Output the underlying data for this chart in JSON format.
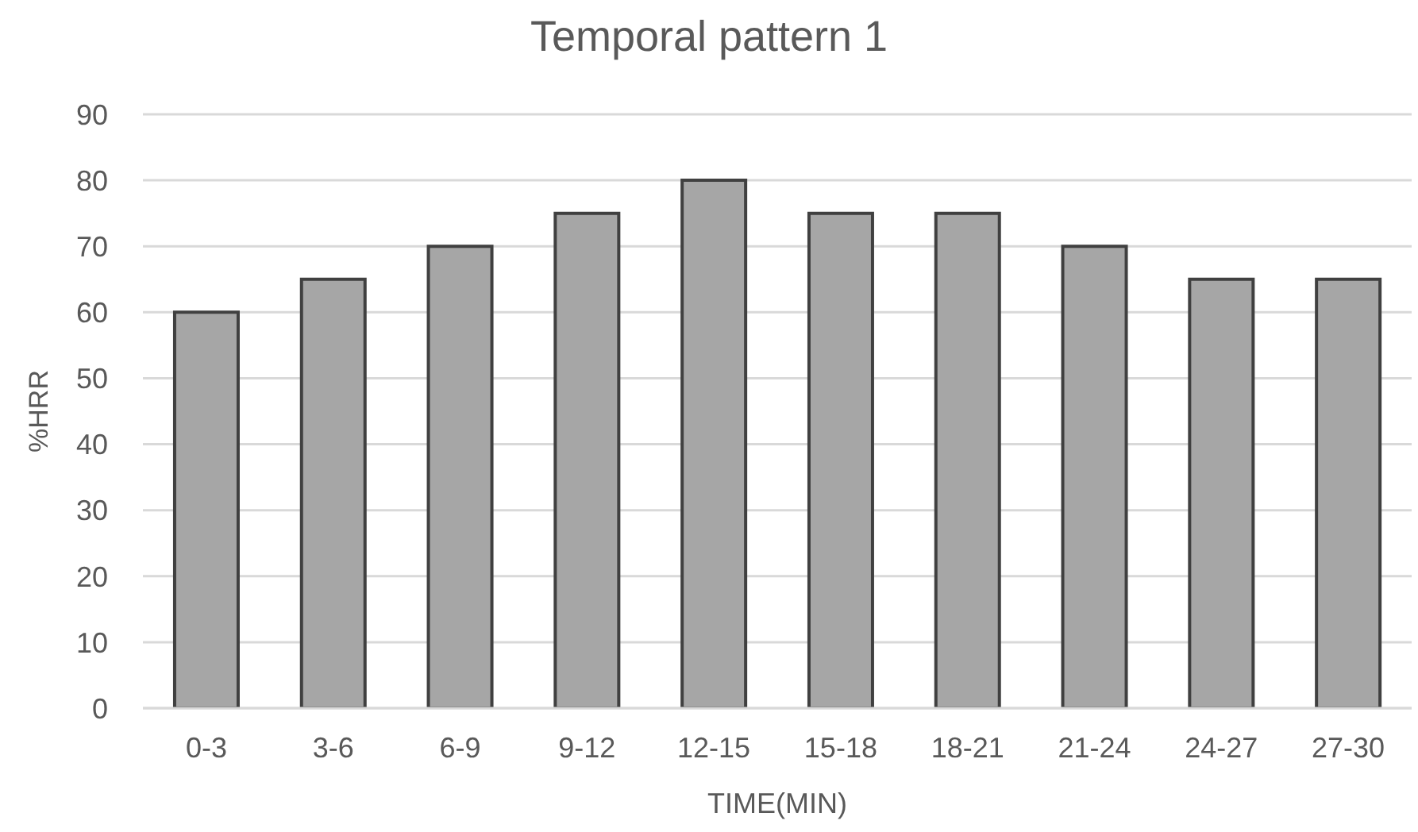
{
  "chart_data": {
    "type": "bar",
    "title": "Temporal pattern 1",
    "xlabel": "TIME(MIN)",
    "ylabel": "%HRR",
    "categories": [
      "0-3",
      "3-6",
      "6-9",
      "9-12",
      "12-15",
      "15-18",
      "18-21",
      "21-24",
      "24-27",
      "27-30"
    ],
    "values": [
      60,
      65,
      70,
      75,
      80,
      75,
      75,
      70,
      65,
      65
    ],
    "color": "#a6a6a6",
    "ylim": [
      0,
      90
    ],
    "yticks": [
      0,
      10,
      20,
      30,
      40,
      50,
      60,
      70,
      80,
      90
    ],
    "grid": "y"
  }
}
